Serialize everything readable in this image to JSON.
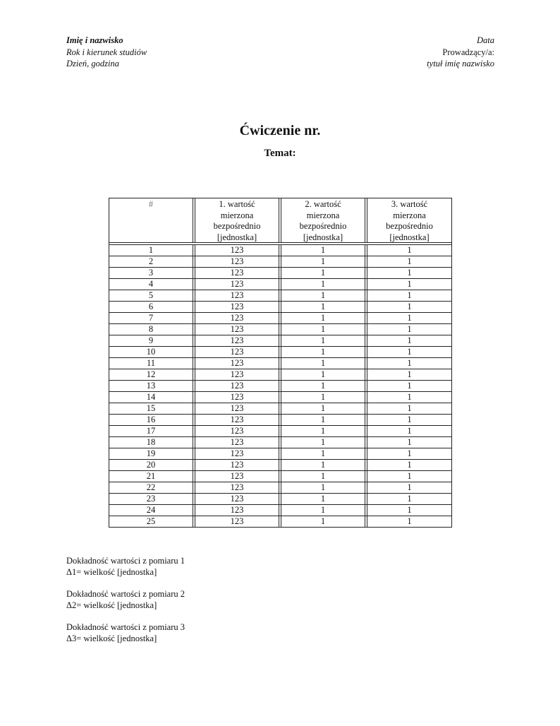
{
  "header": {
    "left": {
      "name": "Imię i nazwisko",
      "course": "Rok i kierunek studiów",
      "day_time": "Dzień, godzina"
    },
    "right": {
      "date": "Data",
      "instructor_label": "Prowadzący/a:",
      "instructor": "tytuł imię nazwisko"
    }
  },
  "title": "Ćwiczenie nr.",
  "subtitle": "Temat:",
  "table": {
    "columns": [
      [
        "#"
      ],
      [
        "1. wartość",
        "mierzona",
        "bezpośrednio",
        "[jednostka]"
      ],
      [
        "2. wartość",
        "mierzona",
        "bezpośrednio",
        "[jednostka]"
      ],
      [
        "3. wartość",
        "mierzona",
        "bezpośrednio",
        "[jednostka]"
      ]
    ],
    "rows": [
      [
        "1",
        "123",
        "1",
        "1"
      ],
      [
        "2",
        "123",
        "1",
        "1"
      ],
      [
        "3",
        "123",
        "1",
        "1"
      ],
      [
        "4",
        "123",
        "1",
        "1"
      ],
      [
        "5",
        "123",
        "1",
        "1"
      ],
      [
        "6",
        "123",
        "1",
        "1"
      ],
      [
        "7",
        "123",
        "1",
        "1"
      ],
      [
        "8",
        "123",
        "1",
        "1"
      ],
      [
        "9",
        "123",
        "1",
        "1"
      ],
      [
        "10",
        "123",
        "1",
        "1"
      ],
      [
        "11",
        "123",
        "1",
        "1"
      ],
      [
        "12",
        "123",
        "1",
        "1"
      ],
      [
        "13",
        "123",
        "1",
        "1"
      ],
      [
        "14",
        "123",
        "1",
        "1"
      ],
      [
        "15",
        "123",
        "1",
        "1"
      ],
      [
        "16",
        "123",
        "1",
        "1"
      ],
      [
        "17",
        "123",
        "1",
        "1"
      ],
      [
        "18",
        "123",
        "1",
        "1"
      ],
      [
        "19",
        "123",
        "1",
        "1"
      ],
      [
        "20",
        "123",
        "1",
        "1"
      ],
      [
        "21",
        "123",
        "1",
        "1"
      ],
      [
        "22",
        "123",
        "1",
        "1"
      ],
      [
        "23",
        "123",
        "1",
        "1"
      ],
      [
        "24",
        "123",
        "1",
        "1"
      ],
      [
        "25",
        "123",
        "1",
        "1"
      ]
    ]
  },
  "notes": [
    {
      "line1": "Dokładność wartości z pomiaru 1",
      "line2": "Δ1= wielkość [jednostka]"
    },
    {
      "line1": "Dokładność wartości z pomiaru 2",
      "line2": "Δ2= wielkość [jednostka]"
    },
    {
      "line1": "Dokładność wartości z pomiaru 3",
      "line2": "Δ3= wielkość [jednostka]"
    }
  ]
}
